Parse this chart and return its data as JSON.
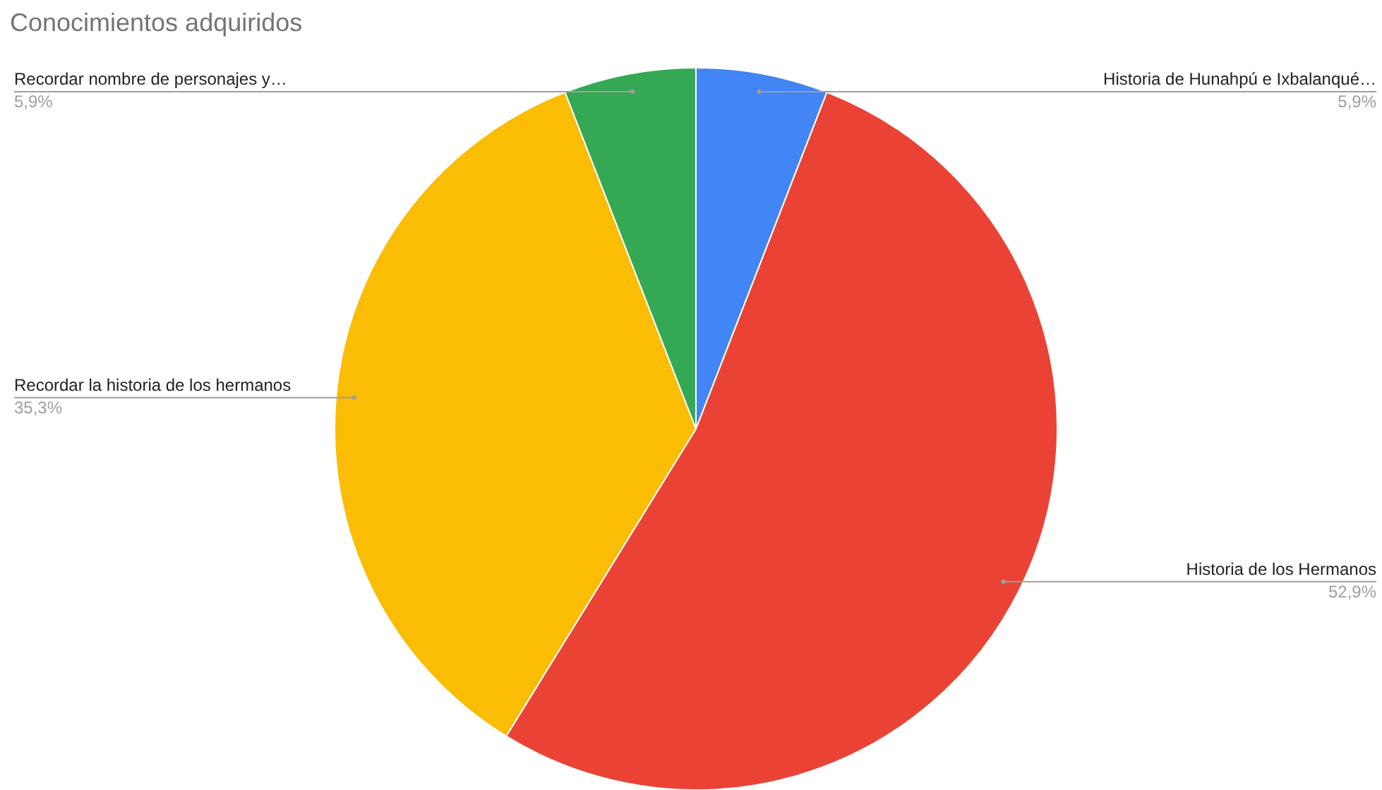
{
  "chart_data": {
    "type": "pie",
    "title": "Conocimientos adquiridos",
    "categories": [
      "Historia de Hunahpú e Ixbalanqué…",
      "Historia de los Hermanos",
      "Recordar la historia de los hermanos",
      "Recordar nombre de personajes y…"
    ],
    "values": [
      5.9,
      52.9,
      35.3,
      5.9
    ],
    "value_labels": [
      "5,9%",
      "52,9%",
      "35,3%",
      "5,9%"
    ],
    "colors": [
      "#4285f4",
      "#ea4335",
      "#fbbc04",
      "#34a853"
    ],
    "legend": false
  }
}
